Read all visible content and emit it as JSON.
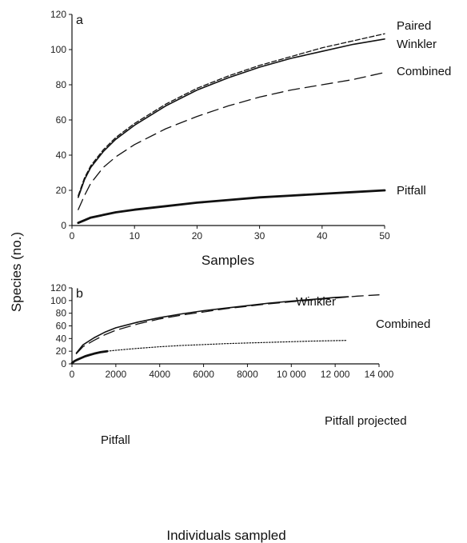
{
  "ylabel": "Species (no.)",
  "chart_data": [
    {
      "type": "line",
      "panel": "a",
      "xlabel": "Samples",
      "xlim": [
        0,
        50
      ],
      "ylim": [
        0,
        120
      ],
      "xticks": [
        0,
        10,
        20,
        30,
        40,
        50
      ],
      "yticks": [
        0,
        20,
        40,
        60,
        80,
        100,
        120
      ],
      "xtick_labels": [
        "0",
        "10",
        "20",
        "30",
        "40",
        "50"
      ],
      "ytick_labels": [
        "0",
        "20",
        "40",
        "60",
        "80",
        "100",
        "120"
      ],
      "series": [
        {
          "name": "Paired",
          "style": "dashed-fine",
          "x": [
            1,
            2,
            3,
            5,
            7,
            10,
            15,
            20,
            25,
            30,
            35,
            40,
            45,
            50
          ],
          "y": [
            17,
            27,
            34,
            43,
            50,
            58,
            69,
            78,
            85,
            91,
            96,
            101,
            105,
            109
          ]
        },
        {
          "name": "Winkler",
          "style": "solid",
          "x": [
            1,
            2,
            3,
            5,
            7,
            10,
            15,
            20,
            25,
            30,
            35,
            40,
            45,
            50
          ],
          "y": [
            16,
            26,
            33,
            42,
            49,
            57,
            68,
            77,
            84,
            90,
            95,
            99,
            103,
            106
          ]
        },
        {
          "name": "Combined",
          "style": "dashed-long",
          "x": [
            1,
            2,
            3,
            5,
            7,
            10,
            15,
            20,
            25,
            30,
            35,
            40,
            45,
            50
          ],
          "y": [
            9,
            17,
            24,
            33,
            39,
            46,
            55,
            62,
            68,
            73,
            77,
            80,
            83,
            87
          ]
        },
        {
          "name": "Pitfall",
          "style": "solid-thick",
          "x": [
            1,
            2,
            3,
            5,
            7,
            10,
            15,
            20,
            25,
            30,
            35,
            40,
            45,
            50
          ],
          "y": [
            1.5,
            3,
            4.5,
            6,
            7.5,
            9,
            11,
            13,
            14.5,
            16,
            17,
            18,
            19,
            20
          ]
        }
      ]
    },
    {
      "type": "line",
      "panel": "b",
      "xlabel": "Individuals sampled",
      "xlim": [
        0,
        14000
      ],
      "ylim": [
        0,
        120
      ],
      "xticks": [
        0,
        2000,
        4000,
        6000,
        8000,
        10000,
        12000,
        14000
      ],
      "yticks": [
        0,
        20,
        40,
        60,
        80,
        100,
        120
      ],
      "xtick_labels": [
        "0",
        "2000",
        "4000",
        "6000",
        "8000",
        "10 000",
        "12 000",
        "14 000"
      ],
      "ytick_labels": [
        "0",
        "20",
        "40",
        "60",
        "80",
        "100",
        "120"
      ],
      "series": [
        {
          "name": "Winkler",
          "style": "solid",
          "x": [
            200,
            500,
            1000,
            1500,
            2000,
            3000,
            4000,
            5000,
            6000,
            7000,
            8000,
            9000,
            10000,
            11000,
            12000,
            12600
          ],
          "y": [
            17,
            30,
            41,
            50,
            57,
            66,
            73,
            79,
            84,
            88,
            92,
            96,
            99,
            102,
            105,
            106
          ]
        },
        {
          "name": "Combined",
          "style": "dashed-long",
          "x": [
            200,
            500,
            1000,
            1500,
            2000,
            3000,
            4000,
            5000,
            6000,
            7000,
            8000,
            9000,
            10000,
            11000,
            12000,
            13000,
            14000
          ],
          "y": [
            16,
            27,
            37,
            46,
            53,
            63,
            71,
            77,
            82,
            87,
            91,
            95,
            98,
            101,
            104,
            107,
            109
          ]
        },
        {
          "name": "Pitfall",
          "style": "solid-thick",
          "x": [
            0,
            100,
            200,
            400,
            600,
            800,
            1000,
            1300,
            1600
          ],
          "y": [
            1,
            4,
            6,
            9,
            12,
            14,
            16,
            18.5,
            20
          ]
        },
        {
          "name": "Pitfall projected",
          "style": "dotted",
          "x": [
            1600,
            2000,
            3000,
            4000,
            5000,
            6000,
            7000,
            8000,
            9000,
            10000,
            11000,
            12500
          ],
          "y": [
            20,
            21.5,
            24.5,
            27,
            29,
            30.5,
            32,
            33,
            34,
            35,
            36,
            37
          ]
        }
      ]
    }
  ]
}
